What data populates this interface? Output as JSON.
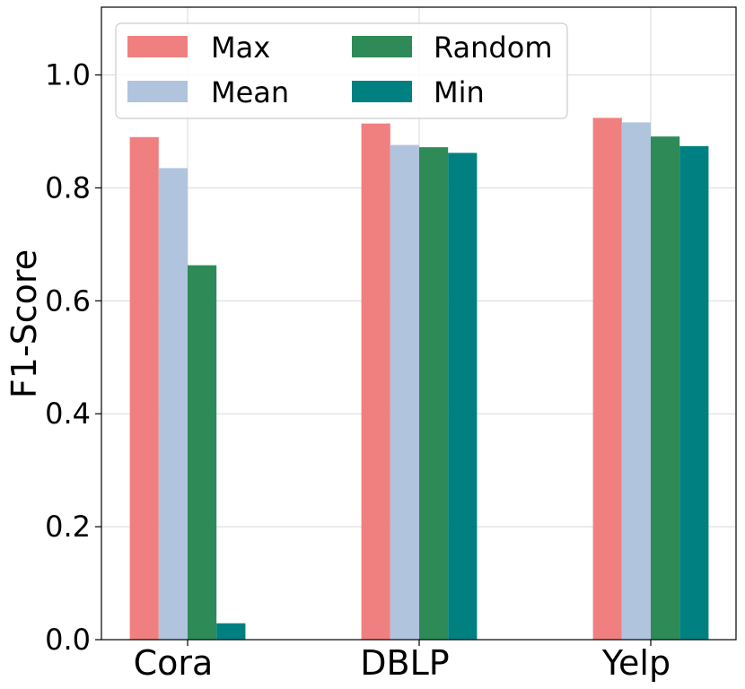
{
  "chart_data": {
    "type": "bar",
    "title": "",
    "xlabel": "",
    "ylabel": "F1-Score",
    "ylim": [
      0,
      1.12
    ],
    "yticks": [
      "0.0",
      "0.2",
      "0.4",
      "0.6",
      "0.8",
      "1.0"
    ],
    "grid": true,
    "legend_position": "top-left",
    "categories": [
      "Cora",
      "DBLP",
      "Yelp"
    ],
    "series": [
      {
        "name": "Max",
        "color": "#f08080",
        "values": [
          0.89,
          0.914,
          0.924
        ]
      },
      {
        "name": "Mean",
        "color": "#b0c4de",
        "values": [
          0.835,
          0.876,
          0.916
        ]
      },
      {
        "name": "Random",
        "color": "#2e8b57",
        "values": [
          0.663,
          0.872,
          0.891
        ]
      },
      {
        "name": "Min",
        "color": "#008080",
        "values": [
          0.029,
          0.862,
          0.874
        ]
      }
    ]
  }
}
